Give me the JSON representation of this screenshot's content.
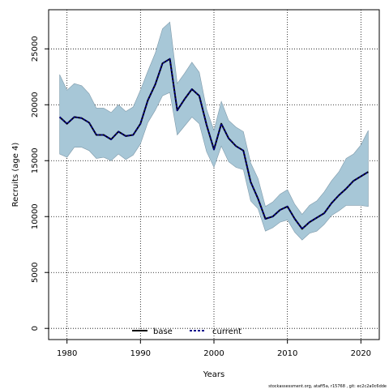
{
  "chart_data": {
    "type": "area",
    "xlabel": "Years",
    "ylabel": "Recruits (age 4)",
    "xlim": [
      1977.5,
      2022.5
    ],
    "ylim": [
      -1000,
      28500
    ],
    "x_ticks": [
      1980,
      1990,
      2000,
      2010,
      2020
    ],
    "x_tick_labels": [
      "1980",
      "1990",
      "2000",
      "2010",
      "2020"
    ],
    "y_ticks": [
      0,
      5000,
      10000,
      15000,
      20000,
      25000
    ],
    "y_tick_labels": [
      "0",
      "5000",
      "10000",
      "15000",
      "20000",
      "25000"
    ],
    "grid": true,
    "legend_position": "bottom-center",
    "x": [
      1979,
      1980,
      1981,
      1982,
      1983,
      1984,
      1985,
      1986,
      1987,
      1988,
      1989,
      1990,
      1991,
      1992,
      1993,
      1994,
      1995,
      1996,
      1997,
      1998,
      1999,
      2000,
      2001,
      2002,
      2003,
      2004,
      2005,
      2006,
      2007,
      2008,
      2009,
      2010,
      2011,
      2012,
      2013,
      2014,
      2015,
      2016,
      2017,
      2018,
      2019,
      2020,
      2021
    ],
    "series": [
      {
        "name": "base",
        "color": "#000000",
        "values": [
          18900,
          18300,
          18900,
          18800,
          18400,
          17300,
          17300,
          16900,
          17600,
          17200,
          17300,
          18300,
          20400,
          21800,
          23700,
          24100,
          19500,
          20500,
          21400,
          20800,
          18200,
          16000,
          18300,
          17000,
          16300,
          15900,
          13100,
          11600,
          9800,
          10000,
          10600,
          10900,
          9800,
          8900,
          9500,
          9900,
          10300,
          11200,
          11900,
          12500,
          13200,
          13600,
          14000
        ]
      },
      {
        "name": "current",
        "color": "#00008b",
        "values": [
          18900,
          18300,
          18900,
          18800,
          18400,
          17300,
          17300,
          16900,
          17600,
          17200,
          17300,
          18300,
          20400,
          21800,
          23700,
          24100,
          19500,
          20500,
          21400,
          20800,
          18200,
          16000,
          18300,
          17000,
          16300,
          15900,
          13100,
          11600,
          9800,
          10000,
          10600,
          10900,
          9800,
          8900,
          9500,
          9900,
          10300,
          11200,
          11900,
          12500,
          13200,
          13600,
          14000
        ]
      }
    ],
    "interval": {
      "color": "#a7c7d7",
      "lower": [
        15600,
        15300,
        16200,
        16200,
        15900,
        15200,
        15300,
        15000,
        15600,
        15100,
        15500,
        16500,
        18400,
        19500,
        20800,
        21100,
        17300,
        18100,
        18900,
        18300,
        15800,
        14400,
        16300,
        14900,
        14400,
        14200,
        11400,
        10700,
        8700,
        9000,
        9500,
        9700,
        8600,
        7900,
        8500,
        8700,
        9300,
        10100,
        10500,
        11000,
        11000,
        11000,
        10900
      ],
      "upper": [
        22700,
        21300,
        21900,
        21700,
        21000,
        19700,
        19700,
        19300,
        20000,
        19400,
        19800,
        21300,
        23000,
        24600,
        26800,
        27400,
        21900,
        22800,
        23800,
        22900,
        19600,
        17700,
        20300,
        18600,
        18000,
        17600,
        14800,
        13400,
        10900,
        11300,
        12000,
        12400,
        11100,
        10200,
        11000,
        11400,
        12200,
        13200,
        14000,
        15200,
        15600,
        16400,
        17700
      ]
    }
  },
  "footer": {
    "text": "stockassessment.org, ataff5a, r15768 , git: ec2c2a0c6dde"
  }
}
